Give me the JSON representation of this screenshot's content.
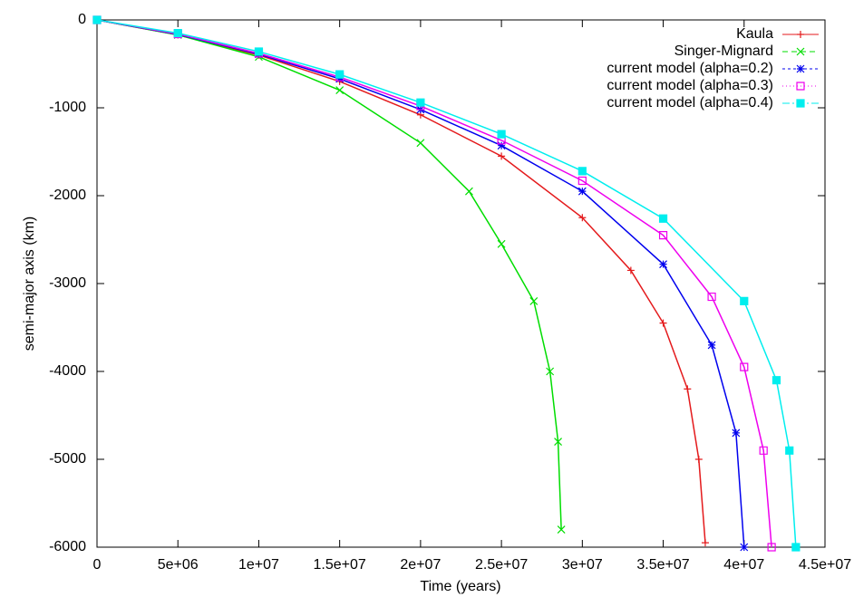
{
  "chart_data": {
    "type": "line",
    "x_label": "Time (years)",
    "y_label": "semi-major axis (km)",
    "xlim": [
      0,
      45000000
    ],
    "ylim": [
      -6000,
      0
    ],
    "xticks": [
      0,
      {
        "value": 5000000,
        "label": "5e+06"
      },
      {
        "value": 10000000,
        "label": "1e+07"
      },
      {
        "value": 15000000,
        "label": "1.5e+07"
      },
      {
        "value": 20000000,
        "label": "2e+07"
      },
      {
        "value": 25000000,
        "label": "2.5e+07"
      },
      {
        "value": 30000000,
        "label": "3e+07"
      },
      {
        "value": 35000000,
        "label": "3.5e+07"
      },
      {
        "value": 40000000,
        "label": "4e+07"
      },
      {
        "value": 45000000,
        "label": "4.5e+07"
      }
    ],
    "yticks": [
      0,
      -1000,
      -2000,
      -3000,
      -4000,
      -5000,
      -6000
    ],
    "grid": false,
    "legend": "top right",
    "series": [
      {
        "name": "Kaula",
        "color": "#e41a1c",
        "marker": "plus",
        "dash": "",
        "x": [
          0,
          5000000,
          10000000,
          15000000,
          20000000,
          25000000,
          30000000,
          33000000,
          35000000,
          36500000,
          37200000,
          37600000
        ],
        "values": [
          0,
          -170,
          -400,
          -700,
          -1080,
          -1550,
          -2250,
          -2850,
          -3450,
          -4200,
          -5000,
          -5950
        ]
      },
      {
        "name": "Singer-Mignard",
        "color": "#00dd00",
        "marker": "cross",
        "dash": "6 4",
        "x": [
          0,
          5000000,
          10000000,
          15000000,
          20000000,
          23000000,
          25000000,
          27000000,
          28000000,
          28500000,
          28700000
        ],
        "values": [
          0,
          -170,
          -420,
          -800,
          -1400,
          -1950,
          -2550,
          -3200,
          -4000,
          -4800,
          -5800
        ]
      },
      {
        "name": "current model (alpha=0.2)",
        "color": "#0000ee",
        "marker": "star",
        "dash": "3 3",
        "x": [
          0,
          5000000,
          10000000,
          15000000,
          20000000,
          25000000,
          30000000,
          35000000,
          38000000,
          39500000,
          40000000
        ],
        "values": [
          0,
          -165,
          -390,
          -670,
          -1020,
          -1430,
          -1950,
          -2780,
          -3700,
          -4700,
          -6000
        ]
      },
      {
        "name": "current model (alpha=0.3)",
        "color": "#ee00ee",
        "marker": "square",
        "dash": "1 3",
        "x": [
          0,
          5000000,
          10000000,
          15000000,
          20000000,
          25000000,
          30000000,
          35000000,
          38000000,
          40000000,
          41200000,
          41700000
        ],
        "values": [
          0,
          -160,
          -380,
          -650,
          -980,
          -1370,
          -1830,
          -2450,
          -3150,
          -3950,
          -4900,
          -6000
        ]
      },
      {
        "name": "current model (alpha=0.4)",
        "color": "#00eeee",
        "marker": "filled-square",
        "dash": "8 3 2 3",
        "x": [
          0,
          5000000,
          10000000,
          15000000,
          20000000,
          25000000,
          30000000,
          35000000,
          40000000,
          42000000,
          42800000,
          43200000
        ],
        "values": [
          0,
          -150,
          -360,
          -620,
          -940,
          -1300,
          -1720,
          -2260,
          -3200,
          -4100,
          -4900,
          -6000
        ]
      }
    ]
  }
}
